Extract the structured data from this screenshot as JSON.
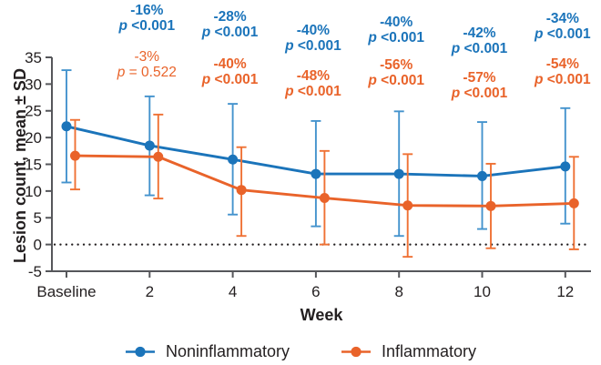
{
  "chart_data": {
    "type": "line",
    "title": "",
    "xlabel": "Week",
    "ylabel": "Lesion count, mean ± SD",
    "x_categories": [
      "Baseline",
      "2",
      "4",
      "6",
      "8",
      "10",
      "12"
    ],
    "y_ticks": [
      35,
      30,
      25,
      20,
      15,
      10,
      5,
      0,
      -5
    ],
    "ylim": [
      -5,
      35
    ],
    "grid": false,
    "zero_reference_line": "dotted",
    "legend_position": "bottom",
    "error_bars": "± SD",
    "series": [
      {
        "name": "Noninflammatory",
        "color": "#1b74ba",
        "errorbar_color": "#4493cd",
        "mean": [
          22.1,
          18.5,
          15.9,
          13.2,
          13.2,
          12.8,
          14.6
        ],
        "upper": [
          32.6,
          27.7,
          26.3,
          23.1,
          24.9,
          22.9,
          25.5
        ],
        "lower": [
          11.6,
          9.2,
          5.6,
          3.4,
          1.6,
          2.9,
          3.9
        ]
      },
      {
        "name": "Inflammatory",
        "color": "#e9632a",
        "errorbar_color": "#ef7134",
        "mean": [
          16.6,
          16.4,
          10.2,
          8.7,
          7.3,
          7.2,
          7.7
        ],
        "upper": [
          23.3,
          24.3,
          18.2,
          17.5,
          16.9,
          15.1,
          16.4
        ],
        "lower": [
          10.3,
          8.6,
          1.6,
          0.0,
          -2.3,
          -0.7,
          -0.9
        ]
      }
    ],
    "annotations": [
      {
        "week": "2",
        "noninflammatory": {
          "pct": "-16%",
          "p": "<0.001",
          "significant": true
        },
        "inflammatory": {
          "pct": "-3%",
          "p": "= 0.522",
          "significant": false
        }
      },
      {
        "week": "4",
        "noninflammatory": {
          "pct": "-28%",
          "p": "<0.001",
          "significant": true
        },
        "inflammatory": {
          "pct": "-40%",
          "p": "<0.001",
          "significant": true
        }
      },
      {
        "week": "6",
        "noninflammatory": {
          "pct": "-40%",
          "p": "<0.001",
          "significant": true
        },
        "inflammatory": {
          "pct": "-48%",
          "p": "<0.001",
          "significant": true
        }
      },
      {
        "week": "8",
        "noninflammatory": {
          "pct": "-40%",
          "p": "<0.001",
          "significant": true
        },
        "inflammatory": {
          "pct": "-56%",
          "p": "<0.001",
          "significant": true
        }
      },
      {
        "week": "10",
        "noninflammatory": {
          "pct": "-42%",
          "p": "<0.001",
          "significant": true
        },
        "inflammatory": {
          "pct": "-57%",
          "p": "<0.001",
          "significant": true
        }
      },
      {
        "week": "12",
        "noninflammatory": {
          "pct": "-34%",
          "p": "<0.001",
          "significant": true
        },
        "inflammatory": {
          "pct": "-54%",
          "p": "<0.001",
          "significant": true
        }
      }
    ],
    "colors": {
      "axis": "#56575b",
      "text": "#231f20"
    }
  }
}
